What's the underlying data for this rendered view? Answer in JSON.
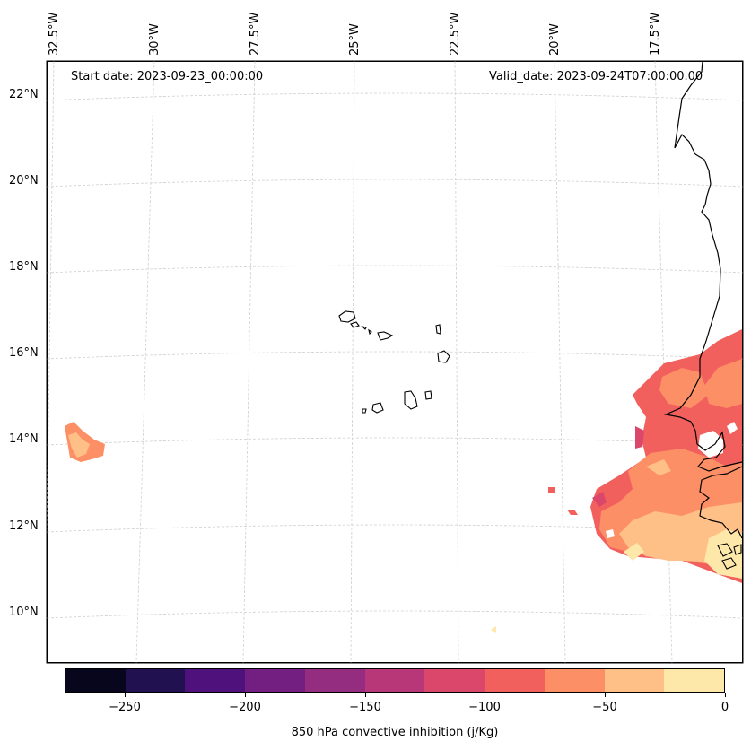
{
  "chart_data": {
    "type": "heatmap",
    "title": "",
    "start_date": "Start date: 2023-09-23_00:00:00",
    "valid_date": "Valid_date: 2023-09-24T07:00:00.00",
    "latitude_labels": [
      "22°N",
      "20°N",
      "18°N",
      "16°N",
      "14°N",
      "12°N",
      "10°N"
    ],
    "latitude_values": [
      22,
      20,
      18,
      16,
      14,
      12,
      10
    ],
    "longitude_labels": [
      "32.5°W",
      "30°W",
      "27.5°W",
      "25°W",
      "22.5°W",
      "20°W",
      "17.5°W"
    ],
    "longitude_values": [
      -32.5,
      -30,
      -27.5,
      -25,
      -22.5,
      -20,
      -17.5
    ],
    "colorbar": {
      "label": "850 hPa convective inhibition (j/Kg)",
      "ticks": [
        "−250",
        "−200",
        "−150",
        "−100",
        "−50",
        "0"
      ],
      "tick_values": [
        -250,
        -200,
        -150,
        -100,
        -50,
        0
      ],
      "range": [
        -275,
        0
      ],
      "levels": [
        -275,
        -250,
        -225,
        -200,
        -175,
        -150,
        -125,
        -100,
        -75,
        -50,
        -25,
        0
      ],
      "colors": [
        "#07061c",
        "#221150",
        "#4f117b",
        "#721f81",
        "#942c80",
        "#b73779",
        "#db476a",
        "#f1605d",
        "#fc8f65",
        "#fec086",
        "#fde7a9"
      ]
    },
    "gridlines": "dashed",
    "regions": [
      {
        "name": "East Atlantic / Senegal–Gambia CIN field",
        "approx_lon": [
          -18.5,
          -15.5
        ],
        "approx_lat": [
          10.5,
          16.5
        ],
        "values_range": [
          -125,
          0
        ]
      },
      {
        "name": "Isolated patch west",
        "approx_lon": [
          -32.5,
          -32.0
        ],
        "approx_lat": [
          13.7,
          14.3
        ],
        "values_range": [
          -75,
          -25
        ]
      }
    ],
    "features": [
      "Cape Verde islands",
      "West African coastline (Mauritania, Senegal, Gambia, Guinea-Bissau)"
    ]
  }
}
